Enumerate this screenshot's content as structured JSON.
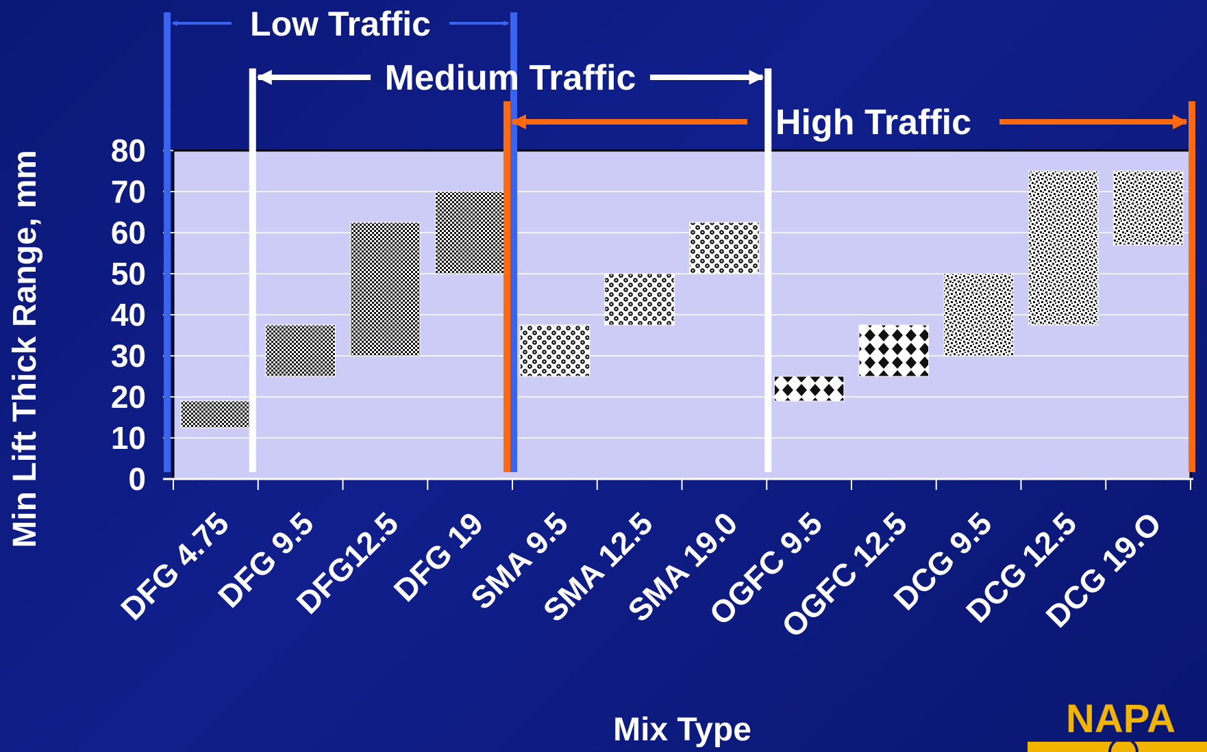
{
  "chart_data": {
    "type": "bar",
    "subtype": "floating-range",
    "xlabel": "Mix Type",
    "ylabel": "Min Lift Thick Range, mm",
    "ylim": [
      0,
      80
    ],
    "yticks": [
      0,
      10,
      20,
      30,
      40,
      50,
      60,
      70,
      80
    ],
    "categories": [
      "DFG 4.75",
      "DFG 9.5",
      "DFG12.5",
      "DFG 19",
      "SMA 9.5",
      "SMA 12.5",
      "SMA 19.0",
      "OGFC 9.5",
      "OGFC 12.5",
      "DCG 9.5",
      "DCG 12.5",
      "DCG 19.O"
    ],
    "ranges": [
      {
        "low": 12.5,
        "high": 19
      },
      {
        "low": 25,
        "high": 37.5
      },
      {
        "low": 30,
        "high": 62.5
      },
      {
        "low": 50,
        "high": 70
      },
      {
        "low": 25,
        "high": 37.5
      },
      {
        "low": 37.5,
        "high": 50
      },
      {
        "low": 50,
        "high": 62.5
      },
      {
        "low": 19,
        "high": 25
      },
      {
        "low": 25,
        "high": 37.5
      },
      {
        "low": 30,
        "high": 50
      },
      {
        "low": 37.5,
        "high": 75
      },
      {
        "low": 57,
        "high": 75
      }
    ],
    "patterns": [
      "fine-check",
      "fine-check",
      "fine-check",
      "fine-check",
      "ring",
      "ring",
      "ring",
      "diamond",
      "diamond",
      "speckle",
      "speckle",
      "speckle"
    ],
    "traffic_bands": [
      {
        "label": "Low Traffic",
        "from_category": 0,
        "to_category": 3,
        "color": "#3a63f0"
      },
      {
        "label": "Medium Traffic",
        "from_category": 1,
        "to_category": 6,
        "color": "#ffffff"
      },
      {
        "label": "High Traffic",
        "from_category": 4,
        "to_category": 11,
        "color": "#ff6a10"
      }
    ],
    "grid": true,
    "plot_background": "#ccccf7"
  },
  "logo": {
    "text": "NAPA",
    "color": "#f2b400"
  }
}
